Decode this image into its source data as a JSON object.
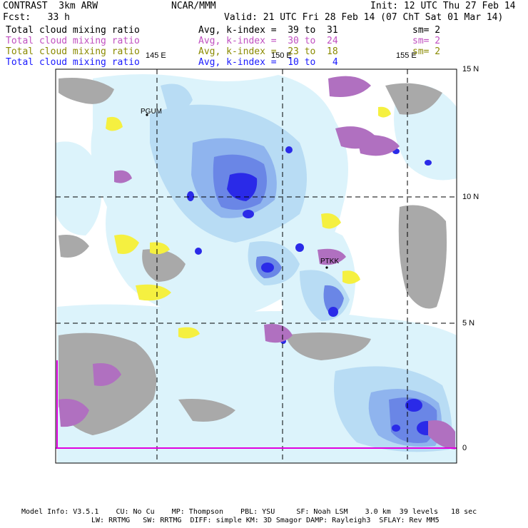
{
  "header": {
    "model": "CONTRAST  3km ARW",
    "org": "NCAR/MMM",
    "init": "Init: 12 UTC Thu 27 Feb 14",
    "fcst": "Fcst:   33 h",
    "valid": "Valid: 21 UTC Fri 28 Feb 14 (07 ChT Sat 01 Mar 14)"
  },
  "legend": [
    {
      "field": "Total cloud mixing ratio",
      "stat": "Avg, k-index =  39 to  31",
      "sm": "sm= 2",
      "color": "#000000"
    },
    {
      "field": "Total cloud mixing ratio",
      "stat": "Avg, k-index =  30 to  24",
      "sm": "sm= 2",
      "color": "#c050c0"
    },
    {
      "field": "Total cloud mixing ratio",
      "stat": "Avg, k-index =  23 to  18",
      "sm": "sm= 2",
      "color": "#8a8a00"
    },
    {
      "field": "Total cloud mixing ratio",
      "stat": "Avg, k-index =  10 to   4",
      "sm": "",
      "color": "#1a1aff"
    }
  ],
  "axes": {
    "lon_labels": [
      "145 E",
      "150 E",
      "155 E"
    ],
    "lat_labels": [
      "15 N",
      "10 N",
      "5 N",
      "0"
    ]
  },
  "stations": [
    "PGUM",
    "PTKK"
  ],
  "footer": {
    "line1": "Model Info: V3.5.1    CU: No Cu    MP: Thompson    PBL: YSU     SF: Noah LSM    3.0 km  39 levels   18 sec",
    "line2": "LW: RRTMG   SW: RRTMG  DIFF: simple KM: 3D Smagor DAMP: Rayleigh3  SFLAY: Rev MM5"
  }
}
